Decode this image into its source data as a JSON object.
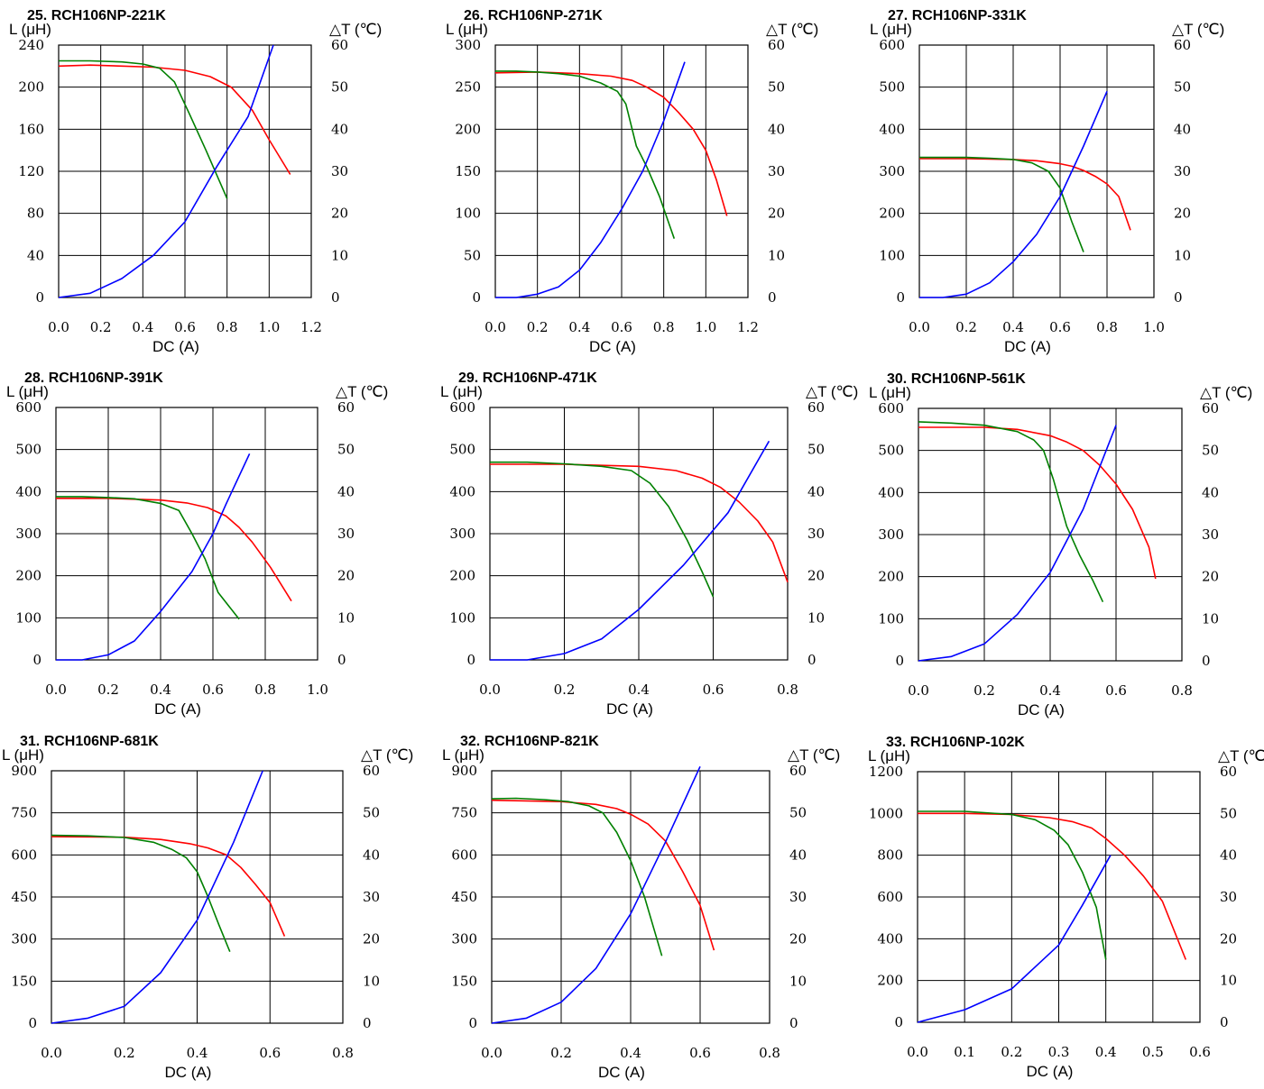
{
  "chart_data": [
    {
      "type": "line",
      "title": "25. RCH106NP-221K",
      "ylabel": "L (μH)",
      "y2label": "△T (℃)",
      "xlabel": "DC (A)",
      "xticks": [
        "0.0",
        "0.2",
        "0.4",
        "0.6",
        "0.8",
        "1.0",
        "1.2"
      ],
      "yticks": [
        "0",
        "40",
        "80",
        "120",
        "160",
        "200",
        "240"
      ],
      "y2ticks": [
        "0",
        "10",
        "20",
        "30",
        "40",
        "50",
        "60"
      ],
      "xlim": [
        0,
        1.2
      ],
      "ylim": [
        0,
        240
      ],
      "y2lim": [
        0,
        60
      ],
      "series": [
        {
          "color": "#ff0000",
          "axis": "left",
          "x": [
            0,
            0.15,
            0.3,
            0.45,
            0.6,
            0.72,
            0.82,
            0.92,
            1.0,
            1.1
          ],
          "y": [
            220,
            221,
            220,
            219,
            216,
            210,
            200,
            178,
            150,
            117
          ]
        },
        {
          "color": "#008000",
          "axis": "left",
          "x": [
            0,
            0.15,
            0.3,
            0.4,
            0.48,
            0.55,
            0.62,
            0.7,
            0.8
          ],
          "y": [
            225,
            225,
            224,
            222,
            218,
            205,
            175,
            140,
            94
          ]
        },
        {
          "color": "#0000ff",
          "axis": "right",
          "x": [
            0,
            0.15,
            0.3,
            0.45,
            0.6,
            0.75,
            0.9,
            1.02
          ],
          "y": [
            0,
            1,
            4.5,
            10,
            18,
            31,
            43,
            60
          ]
        }
      ]
    },
    {
      "type": "line",
      "title": "26. RCH106NP-271K",
      "ylabel": "L (μH)",
      "y2label": "△T (℃)",
      "xlabel": "DC (A)",
      "xticks": [
        "0.0",
        "0.2",
        "0.4",
        "0.6",
        "0.8",
        "1.0",
        "1.2"
      ],
      "yticks": [
        "0",
        "50",
        "100",
        "150",
        "200",
        "250",
        "300"
      ],
      "y2ticks": [
        "0",
        "10",
        "20",
        "30",
        "40",
        "50",
        "60"
      ],
      "xlim": [
        0,
        1.2
      ],
      "ylim": [
        0,
        300
      ],
      "y2lim": [
        0,
        60
      ],
      "series": [
        {
          "color": "#ff0000",
          "axis": "left",
          "x": [
            0,
            0.2,
            0.4,
            0.55,
            0.65,
            0.72,
            0.8,
            0.87,
            0.94,
            1.0,
            1.05,
            1.1
          ],
          "y": [
            267,
            268,
            266,
            263,
            258,
            250,
            238,
            220,
            200,
            175,
            140,
            97
          ]
        },
        {
          "color": "#008000",
          "axis": "left",
          "x": [
            0,
            0.1,
            0.2,
            0.3,
            0.4,
            0.5,
            0.58,
            0.62,
            0.67,
            0.72,
            0.78,
            0.85
          ],
          "y": [
            269,
            269,
            268,
            266,
            263,
            255,
            245,
            230,
            180,
            155,
            120,
            70
          ]
        },
        {
          "color": "#0000ff",
          "axis": "right",
          "x": [
            0,
            0.1,
            0.2,
            0.3,
            0.4,
            0.5,
            0.6,
            0.7,
            0.8,
            0.9
          ],
          "y": [
            0,
            0,
            0.8,
            2.5,
            6.5,
            13,
            21,
            30,
            42,
            56
          ]
        }
      ]
    },
    {
      "type": "line",
      "title": "27. RCH106NP-331K",
      "ylabel": "L (μH)",
      "y2label": "△T (℃)",
      "xlabel": "DC (A)",
      "xticks": [
        "0.0",
        "0.2",
        "0.4",
        "0.6",
        "0.8",
        "1.0"
      ],
      "yticks": [
        "0",
        "100",
        "200",
        "300",
        "400",
        "500",
        "600"
      ],
      "y2ticks": [
        "0",
        "10",
        "20",
        "30",
        "40",
        "50",
        "60"
      ],
      "xlim": [
        0,
        1.0
      ],
      "ylim": [
        0,
        600
      ],
      "y2lim": [
        0,
        60
      ],
      "series": [
        {
          "color": "#ff0000",
          "axis": "left",
          "x": [
            0,
            0.2,
            0.4,
            0.5,
            0.6,
            0.65,
            0.7,
            0.75,
            0.8,
            0.85,
            0.9
          ],
          "y": [
            330,
            330,
            328,
            325,
            318,
            312,
            302,
            288,
            270,
            240,
            160
          ]
        },
        {
          "color": "#008000",
          "axis": "left",
          "x": [
            0,
            0.2,
            0.3,
            0.4,
            0.48,
            0.55,
            0.6,
            0.65,
            0.7
          ],
          "y": [
            333,
            333,
            331,
            328,
            320,
            300,
            260,
            180,
            108
          ]
        },
        {
          "color": "#0000ff",
          "axis": "right",
          "x": [
            0,
            0.1,
            0.2,
            0.3,
            0.4,
            0.5,
            0.6,
            0.7,
            0.8
          ],
          "y": [
            0,
            0,
            0.8,
            3.5,
            8.5,
            15,
            24,
            36,
            49
          ]
        }
      ]
    },
    {
      "type": "line",
      "title": "28. RCH106NP-391K",
      "ylabel": "L (μH)",
      "y2label": "△T (℃)",
      "xlabel": "DC (A)",
      "xticks": [
        "0.0",
        "0.2",
        "0.4",
        "0.6",
        "0.8",
        "1.0"
      ],
      "yticks": [
        "0",
        "100",
        "200",
        "300",
        "400",
        "500",
        "600"
      ],
      "y2ticks": [
        "0",
        "10",
        "20",
        "30",
        "40",
        "50",
        "60"
      ],
      "xlim": [
        0,
        1.0
      ],
      "ylim": [
        0,
        600
      ],
      "y2lim": [
        0,
        60
      ],
      "series": [
        {
          "color": "#ff0000",
          "axis": "left",
          "x": [
            0,
            0.2,
            0.4,
            0.5,
            0.58,
            0.65,
            0.7,
            0.75,
            0.82,
            0.9
          ],
          "y": [
            384,
            384,
            380,
            373,
            362,
            342,
            315,
            280,
            220,
            140
          ]
        },
        {
          "color": "#008000",
          "axis": "left",
          "x": [
            0,
            0.1,
            0.2,
            0.3,
            0.4,
            0.47,
            0.52,
            0.57,
            0.62,
            0.7
          ],
          "y": [
            388,
            388,
            386,
            383,
            372,
            355,
            300,
            240,
            160,
            97
          ]
        },
        {
          "color": "#0000ff",
          "axis": "right",
          "x": [
            0,
            0.1,
            0.2,
            0.3,
            0.4,
            0.52,
            0.6,
            0.65,
            0.74
          ],
          "y": [
            0,
            0,
            1.2,
            4.5,
            11.5,
            21,
            30,
            37,
            49
          ]
        }
      ]
    },
    {
      "type": "line",
      "title": "29. RCH106NP-471K",
      "ylabel": "L (μH)",
      "y2label": "△T (℃)",
      "xlabel": "DC (A)",
      "xticks": [
        "0.0",
        "0.2",
        "0.4",
        "0.6",
        "0.8"
      ],
      "yticks": [
        "0",
        "100",
        "200",
        "300",
        "400",
        "500",
        "600"
      ],
      "y2ticks": [
        "0",
        "10",
        "20",
        "30",
        "40",
        "50",
        "60"
      ],
      "xlim": [
        0,
        0.8
      ],
      "ylim": [
        0,
        600
      ],
      "y2lim": [
        0,
        60
      ],
      "series": [
        {
          "color": "#ff0000",
          "axis": "left",
          "x": [
            0,
            0.2,
            0.4,
            0.5,
            0.57,
            0.62,
            0.67,
            0.72,
            0.76,
            0.8
          ],
          "y": [
            465,
            465,
            460,
            450,
            432,
            410,
            375,
            330,
            280,
            185
          ]
        },
        {
          "color": "#008000",
          "axis": "left",
          "x": [
            0,
            0.1,
            0.2,
            0.3,
            0.38,
            0.43,
            0.48,
            0.53,
            0.57,
            0.6
          ],
          "y": [
            470,
            470,
            466,
            460,
            450,
            420,
            365,
            285,
            210,
            150
          ]
        },
        {
          "color": "#0000ff",
          "axis": "right",
          "x": [
            0,
            0.1,
            0.2,
            0.3,
            0.4,
            0.52,
            0.64,
            0.75
          ],
          "y": [
            0,
            0,
            1.5,
            5,
            12,
            22.5,
            35,
            52
          ]
        }
      ]
    },
    {
      "type": "line",
      "title": "30. RCH106NP-561K",
      "ylabel": "L (μH)",
      "y2label": "△T (℃)",
      "xlabel": "DC (A)",
      "xticks": [
        "0.0",
        "0.2",
        "0.4",
        "0.6",
        "0.8"
      ],
      "yticks": [
        "0",
        "100",
        "200",
        "300",
        "400",
        "500",
        "600"
      ],
      "y2ticks": [
        "0",
        "10",
        "20",
        "30",
        "40",
        "50",
        "60"
      ],
      "xlim": [
        0,
        0.8
      ],
      "ylim": [
        0,
        600
      ],
      "y2lim": [
        0,
        60
      ],
      "series": [
        {
          "color": "#ff0000",
          "axis": "left",
          "x": [
            0,
            0.2,
            0.3,
            0.4,
            0.45,
            0.5,
            0.55,
            0.6,
            0.65,
            0.7,
            0.72
          ],
          "y": [
            555,
            555,
            550,
            535,
            520,
            500,
            465,
            420,
            360,
            270,
            195
          ]
        },
        {
          "color": "#008000",
          "axis": "left",
          "x": [
            0,
            0.1,
            0.2,
            0.3,
            0.35,
            0.38,
            0.41,
            0.45,
            0.49,
            0.53,
            0.56
          ],
          "y": [
            568,
            565,
            560,
            545,
            525,
            500,
            430,
            320,
            250,
            190,
            140
          ]
        },
        {
          "color": "#0000ff",
          "axis": "right",
          "x": [
            0,
            0.1,
            0.2,
            0.3,
            0.4,
            0.5,
            0.6
          ],
          "y": [
            0,
            1,
            4,
            11,
            21,
            36,
            56
          ]
        }
      ]
    },
    {
      "type": "line",
      "title": "31. RCH106NP-681K",
      "ylabel": "L (μH)",
      "y2label": "△T (℃)",
      "xlabel": "DC (A)",
      "xticks": [
        "0.0",
        "0.2",
        "0.4",
        "0.6",
        "0.8"
      ],
      "yticks": [
        "0",
        "150",
        "300",
        "450",
        "600",
        "750",
        "900"
      ],
      "y2ticks": [
        "0",
        "10",
        "20",
        "30",
        "40",
        "50",
        "60"
      ],
      "xlim": [
        0,
        0.8
      ],
      "ylim": [
        0,
        900
      ],
      "y2lim": [
        0,
        60
      ],
      "series": [
        {
          "color": "#ff0000",
          "axis": "left",
          "x": [
            0,
            0.2,
            0.3,
            0.38,
            0.43,
            0.48,
            0.52,
            0.56,
            0.6,
            0.64
          ],
          "y": [
            665,
            663,
            655,
            640,
            625,
            600,
            555,
            495,
            430,
            310
          ]
        },
        {
          "color": "#008000",
          "axis": "left",
          "x": [
            0,
            0.1,
            0.2,
            0.28,
            0.33,
            0.37,
            0.4,
            0.43,
            0.46,
            0.49
          ],
          "y": [
            670,
            668,
            662,
            645,
            620,
            590,
            540,
            450,
            350,
            255
          ]
        },
        {
          "color": "#0000ff",
          "axis": "right",
          "x": [
            0,
            0.1,
            0.2,
            0.3,
            0.4,
            0.5,
            0.58
          ],
          "y": [
            0,
            1.2,
            4,
            12,
            24.5,
            43,
            60
          ]
        }
      ]
    },
    {
      "type": "line",
      "title": "32. RCH106NP-821K",
      "ylabel": "L (μH)",
      "y2label": "△T (℃)",
      "xlabel": "DC (A)",
      "xticks": [
        "0.0",
        "0.2",
        "0.4",
        "0.6",
        "0.8"
      ],
      "yticks": [
        "0",
        "150",
        "300",
        "450",
        "600",
        "750",
        "900"
      ],
      "y2ticks": [
        "0",
        "10",
        "20",
        "30",
        "40",
        "50",
        "60"
      ],
      "xlim": [
        0,
        0.8
      ],
      "ylim": [
        0,
        900
      ],
      "y2lim": [
        0,
        60
      ],
      "series": [
        {
          "color": "#ff0000",
          "axis": "left",
          "x": [
            0,
            0.2,
            0.3,
            0.36,
            0.4,
            0.45,
            0.5,
            0.55,
            0.6,
            0.64
          ],
          "y": [
            795,
            790,
            780,
            765,
            745,
            710,
            650,
            540,
            420,
            260
          ]
        },
        {
          "color": "#008000",
          "axis": "left",
          "x": [
            0,
            0.07,
            0.15,
            0.22,
            0.28,
            0.32,
            0.36,
            0.4,
            0.44,
            0.49
          ],
          "y": [
            800,
            802,
            797,
            790,
            775,
            750,
            680,
            580,
            450,
            240
          ]
        },
        {
          "color": "#0000ff",
          "axis": "right",
          "x": [
            0,
            0.1,
            0.2,
            0.3,
            0.4,
            0.5,
            0.6
          ],
          "y": [
            0,
            1.2,
            5,
            13,
            26,
            43,
            61
          ]
        }
      ]
    },
    {
      "type": "line",
      "title": "33. RCH106NP-102K",
      "ylabel": "L (μH)",
      "y2label": "△T (℃)",
      "xlabel": "DC (A)",
      "xticks": [
        "0.0",
        "0.1",
        "0.2",
        "0.3",
        "0.4",
        "0.5",
        "0.6"
      ],
      "yticks": [
        "0",
        "200",
        "400",
        "600",
        "800",
        "1000",
        "1200"
      ],
      "y2ticks": [
        "0",
        "10",
        "20",
        "30",
        "40",
        "50",
        "60"
      ],
      "xlim": [
        0,
        0.6
      ],
      "ylim": [
        0,
        1200
      ],
      "y2lim": [
        0,
        60
      ],
      "series": [
        {
          "color": "#ff0000",
          "axis": "left",
          "x": [
            0,
            0.1,
            0.2,
            0.28,
            0.33,
            0.37,
            0.4,
            0.44,
            0.48,
            0.52,
            0.57
          ],
          "y": [
            1000,
            1000,
            995,
            980,
            960,
            930,
            880,
            800,
            700,
            580,
            300
          ]
        },
        {
          "color": "#008000",
          "axis": "left",
          "x": [
            0,
            0.1,
            0.2,
            0.25,
            0.29,
            0.32,
            0.35,
            0.38,
            0.4
          ],
          "y": [
            1010,
            1010,
            995,
            970,
            920,
            850,
            720,
            550,
            300
          ]
        },
        {
          "color": "#0000ff",
          "axis": "right",
          "x": [
            0,
            0.1,
            0.2,
            0.3,
            0.35,
            0.41
          ],
          "y": [
            0,
            3,
            8,
            18.5,
            28,
            40
          ]
        }
      ]
    }
  ]
}
